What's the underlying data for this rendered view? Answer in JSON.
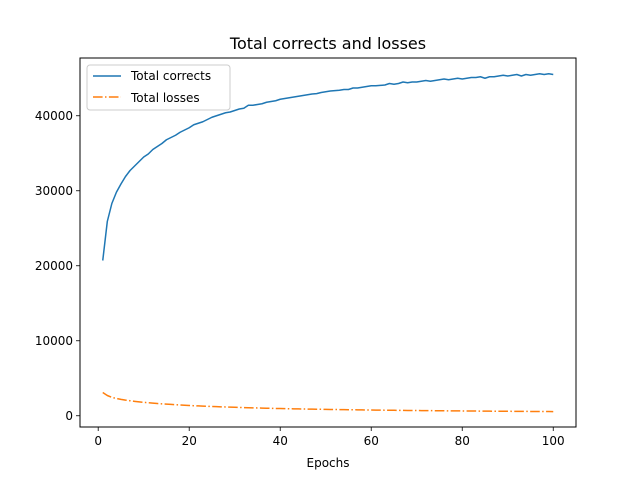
{
  "chart_data": {
    "type": "line",
    "title": "Total corrects and losses",
    "xlabel": "Epochs",
    "ylabel": "",
    "xlim": [
      -4,
      105
    ],
    "ylim": [
      -1500,
      47700
    ],
    "x_ticks": [
      0,
      20,
      40,
      60,
      80,
      100
    ],
    "x_tick_labels": [
      "0",
      "20",
      "40",
      "60",
      "80",
      "100"
    ],
    "y_ticks": [
      0,
      10000,
      20000,
      30000,
      40000
    ],
    "y_tick_labels": [
      "0",
      "10000",
      "20000",
      "30000",
      "40000"
    ],
    "grid": false,
    "legend_position": "top-left",
    "x": [
      1,
      2,
      3,
      4,
      5,
      6,
      7,
      8,
      9,
      10,
      11,
      12,
      13,
      14,
      15,
      16,
      17,
      18,
      19,
      20,
      21,
      22,
      23,
      24,
      25,
      26,
      27,
      28,
      29,
      30,
      31,
      32,
      33,
      34,
      35,
      36,
      37,
      38,
      39,
      40,
      41,
      42,
      43,
      44,
      45,
      46,
      47,
      48,
      49,
      50,
      51,
      52,
      53,
      54,
      55,
      56,
      57,
      58,
      59,
      60,
      61,
      62,
      63,
      64,
      65,
      66,
      67,
      68,
      69,
      70,
      71,
      72,
      73,
      74,
      75,
      76,
      77,
      78,
      79,
      80,
      81,
      82,
      83,
      84,
      85,
      86,
      87,
      88,
      89,
      90,
      91,
      92,
      93,
      94,
      95,
      96,
      97,
      98,
      99,
      100
    ],
    "series": [
      {
        "name": "Total corrects",
        "color": "#1f77b4",
        "linestyle": "solid",
        "values": [
          20700,
          25900,
          28300,
          29800,
          30900,
          31900,
          32700,
          33300,
          33900,
          34500,
          34900,
          35500,
          35900,
          36300,
          36800,
          37100,
          37400,
          37800,
          38100,
          38400,
          38800,
          39000,
          39200,
          39500,
          39800,
          40000,
          40200,
          40400,
          40500,
          40700,
          40900,
          41000,
          41400,
          41400,
          41500,
          41600,
          41800,
          41900,
          42000,
          42200,
          42300,
          42400,
          42500,
          42600,
          42700,
          42800,
          42900,
          42950,
          43100,
          43200,
          43300,
          43350,
          43400,
          43500,
          43500,
          43700,
          43700,
          43800,
          43900,
          44000,
          44000,
          44050,
          44100,
          44300,
          44200,
          44300,
          44500,
          44400,
          44500,
          44500,
          44600,
          44700,
          44600,
          44700,
          44800,
          44900,
          44800,
          44900,
          45000,
          44900,
          45000,
          45100,
          45100,
          45200,
          45000,
          45200,
          45200,
          45300,
          45400,
          45300,
          45400,
          45500,
          45300,
          45500,
          45400,
          45500,
          45600,
          45500,
          45600,
          45500
        ]
      },
      {
        "name": "Total losses",
        "color": "#ff7f0e",
        "linestyle": "dashdot",
        "values": [
          3100,
          2700,
          2450,
          2300,
          2180,
          2080,
          2000,
          1920,
          1850,
          1790,
          1730,
          1680,
          1630,
          1590,
          1550,
          1510,
          1470,
          1440,
          1400,
          1370,
          1340,
          1310,
          1280,
          1260,
          1230,
          1210,
          1190,
          1170,
          1150,
          1130,
          1110,
          1090,
          1070,
          1050,
          1040,
          1020,
          1000,
          990,
          970,
          960,
          950,
          930,
          920,
          910,
          900,
          890,
          880,
          870,
          860,
          850,
          840,
          830,
          820,
          815,
          805,
          795,
          790,
          780,
          770,
          765,
          755,
          750,
          740,
          735,
          725,
          720,
          715,
          705,
          700,
          695,
          690,
          685,
          680,
          670,
          665,
          660,
          655,
          650,
          645,
          640,
          635,
          630,
          625,
          620,
          615,
          610,
          605,
          600,
          598,
          595,
          590,
          585,
          582,
          578,
          575,
          570,
          567,
          563,
          560,
          557
        ]
      }
    ]
  }
}
